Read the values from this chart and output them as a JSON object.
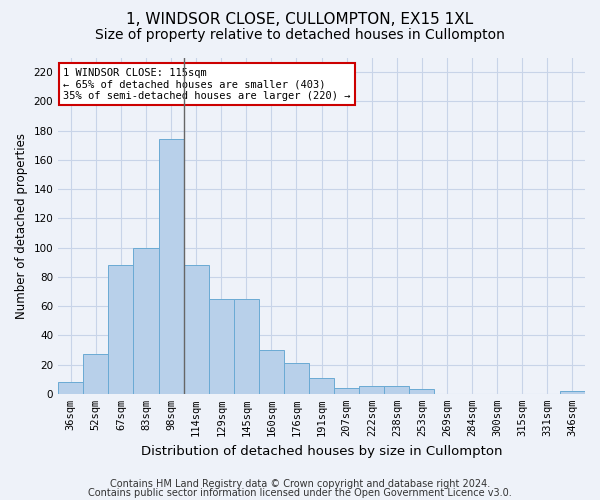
{
  "title": "1, WINDSOR CLOSE, CULLOMPTON, EX15 1XL",
  "subtitle": "Size of property relative to detached houses in Cullompton",
  "xlabel": "Distribution of detached houses by size in Cullompton",
  "ylabel": "Number of detached properties",
  "footer1": "Contains HM Land Registry data © Crown copyright and database right 2024.",
  "footer2": "Contains public sector information licensed under the Open Government Licence v3.0.",
  "bin_labels": [
    "36sqm",
    "52sqm",
    "67sqm",
    "83sqm",
    "98sqm",
    "114sqm",
    "129sqm",
    "145sqm",
    "160sqm",
    "176sqm",
    "191sqm",
    "207sqm",
    "222sqm",
    "238sqm",
    "253sqm",
    "269sqm",
    "284sqm",
    "300sqm",
    "315sqm",
    "331sqm",
    "346sqm"
  ],
  "bar_values": [
    8,
    27,
    88,
    100,
    174,
    88,
    65,
    65,
    30,
    21,
    11,
    4,
    5,
    5,
    3,
    0,
    0,
    0,
    0,
    0,
    2
  ],
  "bar_color": "#b8d0ea",
  "bar_edge_color": "#6aaad4",
  "vline_color": "#666666",
  "vline_x": 4.5,
  "ylim": [
    0,
    230
  ],
  "yticks": [
    0,
    20,
    40,
    60,
    80,
    100,
    120,
    140,
    160,
    180,
    200,
    220
  ],
  "annotation_line1": "1 WINDSOR CLOSE: 115sqm",
  "annotation_line2": "← 65% of detached houses are smaller (403)",
  "annotation_line3": "35% of semi-detached houses are larger (220) →",
  "annotation_box_color": "#ffffff",
  "annotation_box_edge": "#cc0000",
  "bg_color": "#eef2f9",
  "grid_color": "#c8d4e8",
  "title_fontsize": 11,
  "subtitle_fontsize": 10,
  "xlabel_fontsize": 9.5,
  "ylabel_fontsize": 8.5,
  "tick_fontsize": 7.5,
  "annot_fontsize": 7.5,
  "footer_fontsize": 7
}
